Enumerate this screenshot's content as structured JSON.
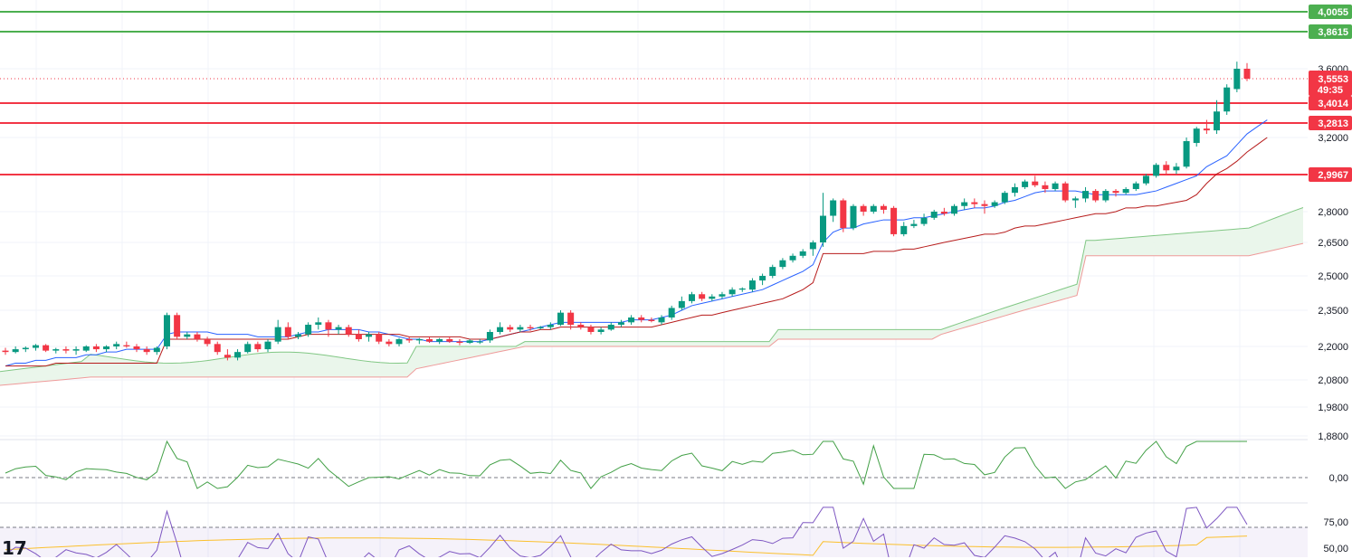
{
  "chart_data": {
    "type": "candlestick",
    "price_axis": {
      "ticks": [
        "3,6000",
        "3,4000",
        "3,2000",
        "2,8000",
        "2,6500",
        "2,5000",
        "2,3500",
        "2,2000",
        "2,0800",
        "1,9800",
        "1,8800"
      ],
      "tick_values": [
        3.6,
        3.4,
        3.2,
        2.8,
        2.65,
        2.5,
        2.35,
        2.2,
        2.08,
        1.98,
        1.88
      ]
    },
    "price_tags": {
      "current": {
        "value": "3,5553",
        "countdown": "49:35",
        "color": "#f23645"
      },
      "levels": [
        {
          "label": "4,0055",
          "value": 4.0055,
          "color": "#4caf50"
        },
        {
          "label": "3,8615",
          "value": 3.8615,
          "color": "#4caf50"
        },
        {
          "label": "3,4014",
          "value": 3.4014,
          "color": "#f23645"
        },
        {
          "label": "3,2813",
          "value": 3.2813,
          "color": "#f23645"
        },
        {
          "label": "2,9967",
          "value": 2.9967,
          "color": "#f23645"
        }
      ]
    },
    "candles": [
      [
        2.185,
        2.195,
        2.17,
        2.18
      ],
      [
        2.18,
        2.2,
        2.175,
        2.19
      ],
      [
        2.19,
        2.2,
        2.18,
        2.195
      ],
      [
        2.195,
        2.21,
        2.185,
        2.205
      ],
      [
        2.205,
        2.21,
        2.18,
        2.185
      ],
      [
        2.185,
        2.195,
        2.175,
        2.19
      ],
      [
        2.19,
        2.2,
        2.175,
        2.185
      ],
      [
        2.185,
        2.2,
        2.17,
        2.19
      ],
      [
        2.185,
        2.205,
        2.18,
        2.2
      ],
      [
        2.2,
        2.21,
        2.18,
        2.19
      ],
      [
        2.19,
        2.205,
        2.18,
        2.2
      ],
      [
        2.2,
        2.22,
        2.19,
        2.21
      ],
      [
        2.205,
        2.22,
        2.195,
        2.2
      ],
      [
        2.2,
        2.21,
        2.18,
        2.19
      ],
      [
        2.19,
        2.2,
        2.17,
        2.18
      ],
      [
        2.18,
        2.2,
        2.17,
        2.195
      ],
      [
        2.2,
        2.34,
        2.19,
        2.33
      ],
      [
        2.33,
        2.34,
        2.23,
        2.24
      ],
      [
        2.24,
        2.26,
        2.23,
        2.25
      ],
      [
        2.25,
        2.26,
        2.22,
        2.23
      ],
      [
        2.23,
        2.24,
        2.2,
        2.21
      ],
      [
        2.21,
        2.22,
        2.17,
        2.18
      ],
      [
        2.17,
        2.19,
        2.15,
        2.16
      ],
      [
        2.16,
        2.19,
        2.15,
        2.18
      ],
      [
        2.18,
        2.22,
        2.175,
        2.21
      ],
      [
        2.21,
        2.22,
        2.18,
        2.19
      ],
      [
        2.19,
        2.23,
        2.18,
        2.22
      ],
      [
        2.22,
        2.31,
        2.21,
        2.28
      ],
      [
        2.28,
        2.3,
        2.23,
        2.24
      ],
      [
        2.24,
        2.26,
        2.23,
        2.25
      ],
      [
        2.25,
        2.3,
        2.24,
        2.29
      ],
      [
        2.29,
        2.32,
        2.27,
        2.3
      ],
      [
        2.3,
        2.31,
        2.24,
        2.27
      ],
      [
        2.27,
        2.29,
        2.25,
        2.28
      ],
      [
        2.28,
        2.29,
        2.24,
        2.25
      ],
      [
        2.25,
        2.27,
        2.22,
        2.23
      ],
      [
        2.24,
        2.26,
        2.22,
        2.25
      ],
      [
        2.25,
        2.26,
        2.21,
        2.22
      ],
      [
        2.22,
        2.23,
        2.2,
        2.21
      ],
      [
        2.21,
        2.235,
        2.2,
        2.23
      ],
      [
        2.23,
        2.24,
        2.215,
        2.225
      ],
      [
        2.225,
        2.235,
        2.21,
        2.23
      ],
      [
        2.23,
        2.24,
        2.215,
        2.22
      ],
      [
        2.22,
        2.235,
        2.21,
        2.23
      ],
      [
        2.23,
        2.24,
        2.215,
        2.22
      ],
      [
        2.22,
        2.23,
        2.205,
        2.215
      ],
      [
        2.215,
        2.23,
        2.21,
        2.225
      ],
      [
        2.22,
        2.23,
        2.21,
        2.22
      ],
      [
        2.225,
        2.27,
        2.215,
        2.26
      ],
      [
        2.26,
        2.3,
        2.25,
        2.28
      ],
      [
        2.28,
        2.29,
        2.26,
        2.27
      ],
      [
        2.27,
        2.29,
        2.26,
        2.28
      ],
      [
        2.28,
        2.29,
        2.265,
        2.275
      ],
      [
        2.275,
        2.285,
        2.27,
        2.28
      ],
      [
        2.28,
        2.3,
        2.27,
        2.29
      ],
      [
        2.29,
        2.35,
        2.285,
        2.34
      ],
      [
        2.34,
        2.35,
        2.27,
        2.29
      ],
      [
        2.29,
        2.3,
        2.27,
        2.28
      ],
      [
        2.28,
        2.29,
        2.25,
        2.26
      ],
      [
        2.26,
        2.28,
        2.25,
        2.27
      ],
      [
        2.27,
        2.3,
        2.265,
        2.29
      ],
      [
        2.29,
        2.31,
        2.28,
        2.3
      ],
      [
        2.3,
        2.33,
        2.29,
        2.32
      ],
      [
        2.32,
        2.33,
        2.3,
        2.31
      ],
      [
        2.31,
        2.32,
        2.3,
        2.305
      ],
      [
        2.3,
        2.33,
        2.29,
        2.32
      ],
      [
        2.32,
        2.37,
        2.31,
        2.36
      ],
      [
        2.36,
        2.41,
        2.35,
        2.39
      ],
      [
        2.39,
        2.43,
        2.38,
        2.42
      ],
      [
        2.42,
        2.43,
        2.39,
        2.4
      ],
      [
        2.4,
        2.42,
        2.39,
        2.41
      ],
      [
        2.41,
        2.43,
        2.4,
        2.42
      ],
      [
        2.42,
        2.45,
        2.41,
        2.44
      ],
      [
        2.44,
        2.45,
        2.43,
        2.445
      ],
      [
        2.44,
        2.49,
        2.43,
        2.48
      ],
      [
        2.48,
        2.51,
        2.46,
        2.5
      ],
      [
        2.5,
        2.55,
        2.49,
        2.54
      ],
      [
        2.54,
        2.58,
        2.53,
        2.57
      ],
      [
        2.57,
        2.6,
        2.56,
        2.59
      ],
      [
        2.59,
        2.62,
        2.58,
        2.61
      ],
      [
        2.62,
        2.66,
        2.59,
        2.65
      ],
      [
        2.65,
        2.9,
        2.63,
        2.78
      ],
      [
        2.78,
        2.87,
        2.75,
        2.86
      ],
      [
        2.86,
        2.87,
        2.7,
        2.72
      ],
      [
        2.72,
        2.84,
        2.71,
        2.83
      ],
      [
        2.83,
        2.84,
        2.78,
        2.8
      ],
      [
        2.8,
        2.84,
        2.79,
        2.83
      ],
      [
        2.83,
        2.84,
        2.79,
        2.81
      ],
      [
        2.82,
        2.83,
        2.68,
        2.69
      ],
      [
        2.69,
        2.75,
        2.68,
        2.73
      ],
      [
        2.73,
        2.76,
        2.72,
        2.74
      ],
      [
        2.74,
        2.79,
        2.73,
        2.77
      ],
      [
        2.77,
        2.81,
        2.76,
        2.8
      ],
      [
        2.8,
        2.82,
        2.78,
        2.79
      ],
      [
        2.79,
        2.84,
        2.78,
        2.83
      ],
      [
        2.83,
        2.87,
        2.81,
        2.85
      ],
      [
        2.85,
        2.87,
        2.82,
        2.84
      ],
      [
        2.84,
        2.86,
        2.79,
        2.83
      ],
      [
        2.83,
        2.86,
        2.82,
        2.85
      ],
      [
        2.85,
        2.91,
        2.84,
        2.9
      ],
      [
        2.9,
        2.95,
        2.88,
        2.93
      ],
      [
        2.93,
        2.97,
        2.92,
        2.96
      ],
      [
        2.96,
        2.99,
        2.93,
        2.94
      ],
      [
        2.94,
        2.96,
        2.9,
        2.92
      ],
      [
        2.92,
        2.96,
        2.91,
        2.95
      ],
      [
        2.95,
        2.96,
        2.85,
        2.86
      ],
      [
        2.86,
        2.88,
        2.82,
        2.87
      ],
      [
        2.87,
        2.93,
        2.85,
        2.91
      ],
      [
        2.91,
        2.92,
        2.85,
        2.86
      ],
      [
        2.86,
        2.92,
        2.85,
        2.91
      ],
      [
        2.91,
        2.92,
        2.88,
        2.9
      ],
      [
        2.9,
        2.93,
        2.89,
        2.92
      ],
      [
        2.92,
        2.96,
        2.91,
        2.95
      ],
      [
        2.95,
        3.0,
        2.94,
        2.99
      ],
      [
        2.99,
        3.06,
        2.98,
        3.05
      ],
      [
        3.05,
        3.07,
        3.0,
        3.02
      ],
      [
        3.02,
        3.06,
        3.0,
        3.04
      ],
      [
        3.04,
        3.2,
        3.03,
        3.18
      ],
      [
        3.17,
        3.26,
        3.15,
        3.25
      ],
      [
        3.25,
        3.3,
        3.22,
        3.24
      ],
      [
        3.24,
        3.42,
        3.22,
        3.35
      ],
      [
        3.35,
        3.52,
        3.33,
        3.5
      ],
      [
        3.49,
        3.65,
        3.47,
        3.6
      ],
      [
        3.6,
        3.64,
        3.54,
        3.5553
      ]
    ],
    "tenkan": [
      2.13,
      2.14,
      2.14,
      2.15,
      2.15,
      2.16,
      2.16,
      2.16,
      2.17,
      2.17,
      2.18,
      2.18,
      2.19,
      2.19,
      2.19,
      2.19,
      2.25,
      2.26,
      2.26,
      2.26,
      2.26,
      2.25,
      2.25,
      2.25,
      2.25,
      2.24,
      2.24,
      2.24,
      2.24,
      2.25,
      2.26,
      2.26,
      2.27,
      2.27,
      2.27,
      2.27,
      2.26,
      2.26,
      2.25,
      2.24,
      2.23,
      2.23,
      2.22,
      2.22,
      2.22,
      2.22,
      2.22,
      2.22,
      2.23,
      2.24,
      2.25,
      2.26,
      2.27,
      2.28,
      2.29,
      2.3,
      2.3,
      2.3,
      2.3,
      2.3,
      2.3,
      2.3,
      2.31,
      2.31,
      2.31,
      2.32,
      2.33,
      2.35,
      2.37,
      2.38,
      2.39,
      2.4,
      2.41,
      2.42,
      2.43,
      2.44,
      2.46,
      2.48,
      2.5,
      2.52,
      2.55,
      2.65,
      2.7,
      2.72,
      2.72,
      2.74,
      2.75,
      2.76,
      2.76,
      2.76,
      2.77,
      2.77,
      2.78,
      2.79,
      2.8,
      2.81,
      2.82,
      2.82,
      2.83,
      2.85,
      2.86,
      2.88,
      2.9,
      2.91,
      2.91,
      2.91,
      2.91,
      2.9,
      2.89,
      2.89,
      2.89,
      2.89,
      2.89,
      2.9,
      2.91,
      2.93,
      2.95,
      2.97,
      2.99,
      3.04,
      3.07,
      3.1,
      3.16,
      3.22,
      3.26,
      3.3
    ],
    "kijun": [
      2.13,
      2.13,
      2.13,
      2.13,
      2.13,
      2.14,
      2.14,
      2.14,
      2.14,
      2.14,
      2.14,
      2.14,
      2.14,
      2.14,
      2.14,
      2.14,
      2.23,
      2.23,
      2.23,
      2.23,
      2.23,
      2.23,
      2.23,
      2.23,
      2.23,
      2.23,
      2.23,
      2.23,
      2.23,
      2.24,
      2.25,
      2.25,
      2.25,
      2.25,
      2.25,
      2.25,
      2.25,
      2.25,
      2.25,
      2.25,
      2.24,
      2.24,
      2.24,
      2.24,
      2.24,
      2.24,
      2.23,
      2.23,
      2.23,
      2.24,
      2.25,
      2.26,
      2.26,
      2.27,
      2.27,
      2.28,
      2.28,
      2.28,
      2.28,
      2.28,
      2.28,
      2.28,
      2.28,
      2.28,
      2.28,
      2.29,
      2.3,
      2.31,
      2.32,
      2.33,
      2.33,
      2.34,
      2.35,
      2.36,
      2.37,
      2.38,
      2.39,
      2.4,
      2.42,
      2.44,
      2.47,
      2.6,
      2.6,
      2.6,
      2.6,
      2.6,
      2.61,
      2.61,
      2.61,
      2.62,
      2.62,
      2.63,
      2.64,
      2.65,
      2.66,
      2.67,
      2.68,
      2.69,
      2.69,
      2.7,
      2.72,
      2.73,
      2.73,
      2.74,
      2.75,
      2.76,
      2.77,
      2.78,
      2.79,
      2.79,
      2.8,
      2.82,
      2.82,
      2.83,
      2.83,
      2.84,
      2.85,
      2.86,
      2.89,
      2.95,
      3.0,
      3.03,
      3.07,
      3.12,
      3.16,
      3.2
    ]
  },
  "cloud": {
    "fill_color": "#e8f5e9",
    "line_upper": "#81c784",
    "line_lower": "#ef9a9a"
  },
  "momentum_panel": {
    "tick_label": "0,00",
    "line_color": "#43a047"
  },
  "rsi_panel": {
    "tick_labels": [
      "75,00",
      "50,00"
    ],
    "rsi_color": "#7e57c2",
    "ma_color": "#fbc02d"
  },
  "logo": {
    "text": "17"
  }
}
